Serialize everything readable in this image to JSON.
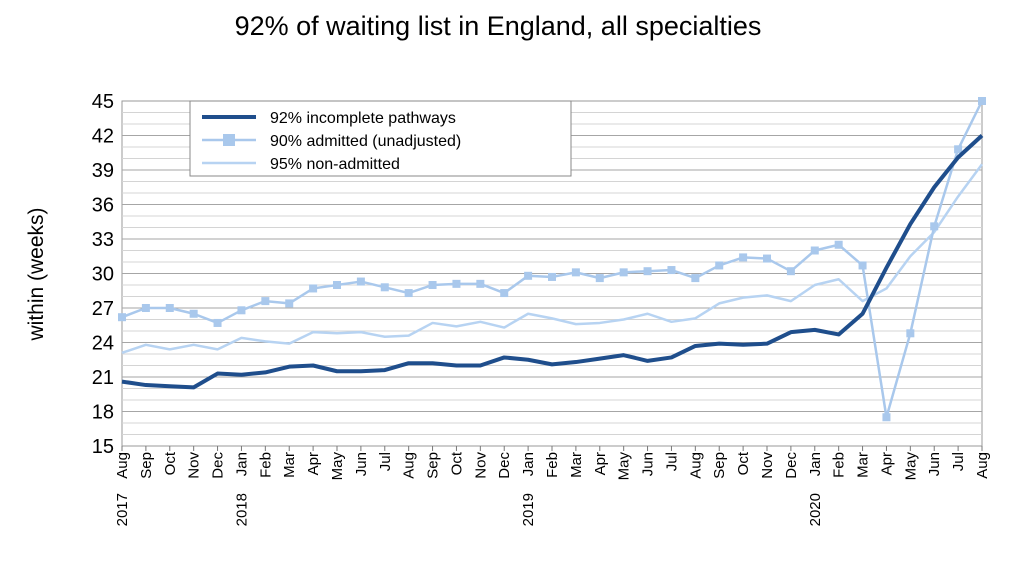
{
  "chart_data": {
    "type": "line",
    "title": "92% of waiting list in England, all specialties",
    "ylabel": "within  (weeks)",
    "xlabel": "",
    "ylim": [
      15,
      45
    ],
    "yticks": [
      15,
      18,
      21,
      24,
      27,
      30,
      33,
      36,
      39,
      42,
      45
    ],
    "grid": true,
    "legend_position": "top-left",
    "categories": [
      "Aug",
      "Sep",
      "Oct",
      "Nov",
      "Dec",
      "Jan",
      "Feb",
      "Mar",
      "Apr",
      "May",
      "Jun",
      "Jul",
      "Aug",
      "Sep",
      "Oct",
      "Nov",
      "Dec",
      "Jan",
      "Feb",
      "Mar",
      "Apr",
      "May",
      "Jun",
      "Jul",
      "Aug",
      "Sep",
      "Oct",
      "Nov",
      "Dec",
      "Jan",
      "Feb",
      "Mar",
      "Apr",
      "May",
      "Jun",
      "Jul",
      "Aug"
    ],
    "year_labels": [
      {
        "index": 0,
        "label": "2017"
      },
      {
        "index": 5,
        "label": "2018"
      },
      {
        "index": 17,
        "label": "2019"
      },
      {
        "index": 29,
        "label": "2020"
      }
    ],
    "series": [
      {
        "name": "92% incomplete pathways",
        "color": "#1f4e8c",
        "marker": "none",
        "values": [
          20.6,
          20.3,
          20.2,
          20.1,
          21.3,
          21.2,
          21.4,
          21.9,
          22.0,
          21.5,
          21.5,
          21.6,
          22.2,
          22.2,
          22.0,
          22.0,
          22.7,
          22.5,
          22.1,
          22.3,
          22.6,
          22.9,
          22.4,
          22.7,
          23.7,
          23.9,
          23.8,
          23.9,
          24.9,
          25.1,
          24.7,
          26.5,
          30.5,
          34.3,
          37.5,
          40.1,
          42.0
        ]
      },
      {
        "name": "90% admitted (unadjusted)",
        "color": "#a9c8ec",
        "marker": "square",
        "values": [
          26.2,
          27.0,
          27.0,
          26.5,
          25.7,
          26.8,
          27.6,
          27.4,
          28.7,
          29.0,
          29.3,
          28.8,
          28.3,
          29.0,
          29.1,
          29.1,
          28.3,
          29.8,
          29.7,
          30.1,
          29.6,
          30.1,
          30.2,
          30.3,
          29.6,
          30.7,
          31.4,
          31.3,
          30.2,
          32.0,
          32.5,
          30.7,
          17.5,
          24.8,
          34.1,
          40.8,
          45.0
        ]
      },
      {
        "name": "95% non-admitted",
        "color": "#b7d3f2",
        "marker": "none",
        "values": [
          23.1,
          23.8,
          23.4,
          23.8,
          23.4,
          24.4,
          24.1,
          23.9,
          24.9,
          24.8,
          24.9,
          24.5,
          24.6,
          25.7,
          25.4,
          25.8,
          25.3,
          26.5,
          26.1,
          25.6,
          25.7,
          26.0,
          26.5,
          25.8,
          26.1,
          27.4,
          27.9,
          28.1,
          27.6,
          29.0,
          29.5,
          27.6,
          28.7,
          31.5,
          33.6,
          36.7,
          39.5
        ]
      }
    ]
  }
}
